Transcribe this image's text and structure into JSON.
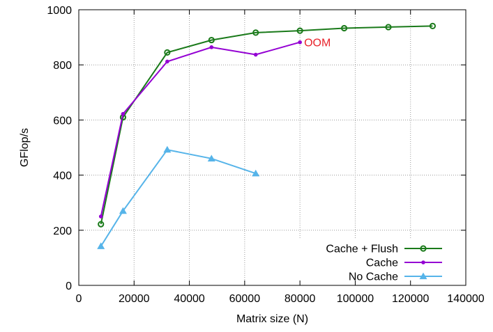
{
  "chart_data": {
    "type": "line",
    "title": "",
    "xlabel": "Matrix size (N)",
    "ylabel": "GFlop/s",
    "xlim": [
      0,
      140000
    ],
    "ylim": [
      0,
      1000
    ],
    "xticks": [
      0,
      20000,
      40000,
      60000,
      80000,
      100000,
      120000,
      140000
    ],
    "yticks": [
      0,
      200,
      400,
      600,
      800,
      1000
    ],
    "grid": true,
    "legend_position": "bottom-right",
    "series": [
      {
        "name": "Cache + Flush",
        "color": "#1a7a1a",
        "marker": "circle",
        "x": [
          8000,
          16000,
          32000,
          48000,
          64000,
          80000,
          96000,
          112000,
          128000
        ],
        "y": [
          222,
          610,
          845,
          890,
          917,
          924,
          933,
          937,
          941
        ]
      },
      {
        "name": "Cache",
        "color": "#9400d3",
        "marker": "dot",
        "x": [
          8000,
          16000,
          32000,
          48000,
          64000,
          80000
        ],
        "y": [
          250,
          622,
          812,
          864,
          837,
          882
        ]
      },
      {
        "name": "No Cache",
        "color": "#56b4e9",
        "marker": "triangle",
        "x": [
          8000,
          16000,
          32000,
          48000,
          64000
        ],
        "y": [
          142,
          270,
          492,
          460,
          406
        ]
      }
    ],
    "annotations": [
      {
        "text": "OOM",
        "x": 81500,
        "y": 882,
        "color": "#e8232b"
      }
    ]
  }
}
